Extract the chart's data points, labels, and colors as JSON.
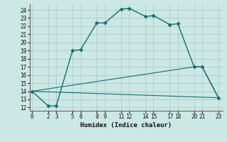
{
  "xlabel": "Humidex (Indice chaleur)",
  "bg_color": "#cce8e4",
  "grid_color": "#aacccc",
  "line_color": "#1a6b6b",
  "xticks": [
    0,
    2,
    3,
    5,
    6,
    8,
    9,
    11,
    12,
    14,
    15,
    17,
    18,
    20,
    21,
    23
  ],
  "yticks": [
    12,
    13,
    14,
    15,
    16,
    17,
    18,
    19,
    20,
    21,
    22,
    23,
    24
  ],
  "xlim": [
    -0.3,
    23.5
  ],
  "ylim": [
    11.6,
    24.7
  ],
  "lines": [
    {
      "x": [
        0,
        2,
        3,
        5,
        6,
        8,
        9,
        11,
        12,
        14,
        15,
        17,
        18,
        20,
        21,
        23
      ],
      "y": [
        14.0,
        12.2,
        12.2,
        19.0,
        19.1,
        22.4,
        22.4,
        24.1,
        24.2,
        23.2,
        23.3,
        22.2,
        22.3,
        17.0,
        17.0,
        13.2
      ],
      "marker": "D",
      "markersize": 2.5,
      "linestyle": "-",
      "linewidth": 1.0
    },
    {
      "x": [
        0,
        23
      ],
      "y": [
        14.0,
        13.2
      ],
      "marker": null,
      "markersize": 0,
      "linestyle": "-",
      "linewidth": 0.8
    },
    {
      "x": [
        0,
        20,
        21,
        23
      ],
      "y": [
        14.0,
        17.0,
        17.0,
        13.2
      ],
      "marker": null,
      "markersize": 0,
      "linestyle": "-",
      "linewidth": 0.8
    }
  ]
}
